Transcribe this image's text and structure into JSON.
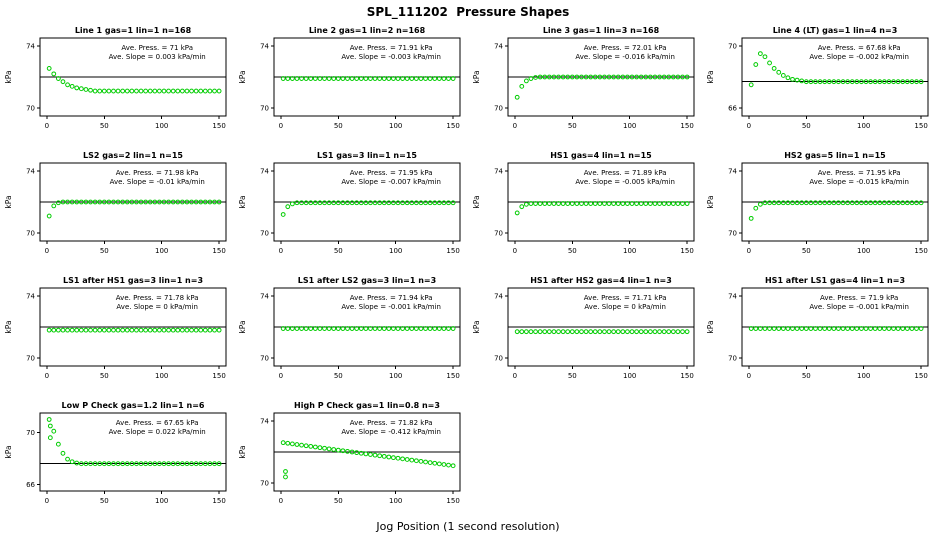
{
  "title": "SPL_111202  Pressure Shapes",
  "xlabel": "Jog Position (1 second resolution)",
  "colors": {
    "point": "#00CC00",
    "axis": "#000000"
  },
  "chart_data": {
    "type": "scatter",
    "grid": {
      "rows": 4,
      "cols": 4
    },
    "xticks": [
      0,
      50,
      100,
      150
    ],
    "xlim": [
      -6,
      156
    ],
    "plots": [
      {
        "title": "Line 1 gas=1 lin=1 n=168",
        "annotation": {
          "press": "Ave. Press. = 71 kPa",
          "slope": "Ave. Slope = 0.003 kPa/min"
        },
        "ave_press": 71,
        "ave_slope": 0.003,
        "ylabel": "kPa",
        "ylim": [
          69.5,
          74.5
        ],
        "yticks": [
          70,
          74
        ],
        "ref_line": 72,
        "series": {
          "x_start": 2,
          "x_step": 4,
          "y": [
            72.55,
            72.2,
            71.9,
            71.7,
            71.5,
            71.4,
            71.3,
            71.25,
            71.2,
            71.15,
            71.1,
            71.1,
            71.1,
            71.1,
            71.1,
            71.1,
            71.1,
            71.1,
            71.1,
            71.1,
            71.1,
            71.1,
            71.1,
            71.1,
            71.1,
            71.1,
            71.1,
            71.1,
            71.1,
            71.1,
            71.1,
            71.1,
            71.1,
            71.1,
            71.1,
            71.1,
            71.1,
            71.1
          ]
        }
      },
      {
        "title": "Line 2 gas=1 lin=2 n=168",
        "annotation": {
          "press": "Ave. Press. = 71.91 kPa",
          "slope": "Ave. Slope = -0.003 kPa/min"
        },
        "ave_press": 71.91,
        "ave_slope": -0.003,
        "ylabel": "kPa",
        "ylim": [
          69.5,
          74.5
        ],
        "yticks": [
          70,
          74
        ],
        "ref_line": 72,
        "series": {
          "x_start": 2,
          "x_step": 4,
          "y": [
            71.9,
            71.9,
            71.9,
            71.9,
            71.9,
            71.9,
            71.9,
            71.9,
            71.9,
            71.9,
            71.9,
            71.9,
            71.9,
            71.9,
            71.9,
            71.9,
            71.9,
            71.9,
            71.9,
            71.9,
            71.9,
            71.9,
            71.9,
            71.9,
            71.9,
            71.9,
            71.9,
            71.9,
            71.9,
            71.9,
            71.9,
            71.9,
            71.9,
            71.9,
            71.9,
            71.9,
            71.9,
            71.9
          ]
        }
      },
      {
        "title": "Line 3 gas=1 lin=3 n=168",
        "annotation": {
          "press": "Ave. Press. = 72.01 kPa",
          "slope": "Ave. Slope = -0.016 kPa/min"
        },
        "ave_press": 72.01,
        "ave_slope": -0.016,
        "ylabel": "kPa",
        "ylim": [
          69.5,
          74.5
        ],
        "yticks": [
          70,
          74
        ],
        "ref_line": 72,
        "series": {
          "x_start": 2,
          "x_step": 4,
          "y": [
            70.7,
            71.4,
            71.75,
            71.9,
            71.97,
            72,
            72,
            72,
            72,
            72,
            72,
            72,
            72,
            72,
            72,
            72,
            72,
            72,
            72,
            72,
            72,
            72,
            72,
            72,
            72,
            72,
            72,
            72,
            72,
            72,
            72,
            72,
            72,
            72,
            72,
            72,
            72,
            72
          ]
        }
      },
      {
        "title": "Line 4 (LT) gas=1 lin=4 n=3",
        "annotation": {
          "press": "Ave. Press. = 67.68 kPa",
          "slope": "Ave. Slope = -0.002 kPa/min"
        },
        "ave_press": 67.68,
        "ave_slope": -0.002,
        "ylabel": "kPa",
        "ylim": [
          65.5,
          70.5
        ],
        "yticks": [
          66,
          70
        ],
        "ref_line": 67.7,
        "series": {
          "x_start": 2,
          "x_step": 4,
          "y": [
            67.5,
            68.8,
            69.5,
            69.3,
            68.9,
            68.55,
            68.3,
            68.1,
            67.95,
            67.85,
            67.8,
            67.75,
            67.7,
            67.7,
            67.7,
            67.7,
            67.7,
            67.7,
            67.7,
            67.7,
            67.7,
            67.7,
            67.7,
            67.7,
            67.7,
            67.7,
            67.7,
            67.7,
            67.7,
            67.7,
            67.7,
            67.7,
            67.7,
            67.7,
            67.7,
            67.7,
            67.7,
            67.7
          ]
        }
      },
      {
        "title": "LS2 gas=2 lin=1 n=15",
        "annotation": {
          "press": "Ave. Press. = 71.98 kPa",
          "slope": "Ave. Slope = -0.01 kPa/min"
        },
        "ave_press": 71.98,
        "ave_slope": -0.01,
        "ylabel": "kPa",
        "ylim": [
          69.5,
          74.5
        ],
        "yticks": [
          70,
          74
        ],
        "ref_line": 72,
        "series": {
          "x_start": 2,
          "x_step": 4,
          "y": [
            71.1,
            71.75,
            71.95,
            72,
            72,
            72,
            72,
            72,
            72,
            72,
            72,
            72,
            72,
            72,
            72,
            72,
            72,
            72,
            72,
            72,
            72,
            72,
            72,
            72,
            72,
            72,
            72,
            72,
            72,
            72,
            72,
            72,
            72,
            72,
            72,
            72,
            72,
            72
          ]
        }
      },
      {
        "title": "LS1 gas=3 lin=1 n=15",
        "annotation": {
          "press": "Ave. Press. = 71.95 kPa",
          "slope": "Ave. Slope = -0.007 kPa/min"
        },
        "ave_press": 71.95,
        "ave_slope": -0.007,
        "ylabel": "kPa",
        "ylim": [
          69.5,
          74.5
        ],
        "yticks": [
          70,
          74
        ],
        "ref_line": 72,
        "series": {
          "x_start": 2,
          "x_step": 4,
          "y": [
            71.2,
            71.7,
            71.88,
            71.95,
            71.95,
            71.95,
            71.95,
            71.95,
            71.95,
            71.95,
            71.95,
            71.95,
            71.95,
            71.95,
            71.95,
            71.95,
            71.95,
            71.95,
            71.95,
            71.95,
            71.95,
            71.95,
            71.95,
            71.95,
            71.95,
            71.95,
            71.95,
            71.95,
            71.95,
            71.95,
            71.95,
            71.95,
            71.95,
            71.95,
            71.95,
            71.95,
            71.95,
            71.95
          ]
        }
      },
      {
        "title": "HS1 gas=4 lin=1 n=15",
        "annotation": {
          "press": "Ave. Press. = 71.89 kPa",
          "slope": "Ave. Slope = -0.005 kPa/min"
        },
        "ave_press": 71.89,
        "ave_slope": -0.005,
        "ylabel": "kPa",
        "ylim": [
          69.5,
          74.5
        ],
        "yticks": [
          70,
          74
        ],
        "ref_line": 72,
        "series": {
          "x_start": 2,
          "x_step": 4,
          "y": [
            71.3,
            71.7,
            71.85,
            71.9,
            71.9,
            71.9,
            71.9,
            71.9,
            71.9,
            71.9,
            71.9,
            71.9,
            71.9,
            71.9,
            71.9,
            71.9,
            71.9,
            71.9,
            71.9,
            71.9,
            71.9,
            71.9,
            71.9,
            71.9,
            71.9,
            71.9,
            71.9,
            71.9,
            71.9,
            71.9,
            71.9,
            71.9,
            71.9,
            71.9,
            71.9,
            71.9,
            71.9,
            71.9
          ]
        }
      },
      {
        "title": "HS2 gas=5 lin=1 n=15",
        "annotation": {
          "press": "Ave. Press. = 71.95 kPa",
          "slope": "Ave. Slope = -0.015 kPa/min"
        },
        "ave_press": 71.95,
        "ave_slope": -0.015,
        "ylabel": "kPa",
        "ylim": [
          69.5,
          74.5
        ],
        "yticks": [
          70,
          74
        ],
        "ref_line": 72,
        "series": {
          "x_start": 2,
          "x_step": 4,
          "y": [
            70.95,
            71.6,
            71.85,
            71.95,
            71.95,
            71.95,
            71.95,
            71.95,
            71.95,
            71.95,
            71.95,
            71.95,
            71.95,
            71.95,
            71.95,
            71.95,
            71.95,
            71.95,
            71.95,
            71.95,
            71.95,
            71.95,
            71.95,
            71.95,
            71.95,
            71.95,
            71.95,
            71.95,
            71.95,
            71.95,
            71.95,
            71.95,
            71.95,
            71.95,
            71.95,
            71.95,
            71.95,
            71.95
          ]
        }
      },
      {
        "title": "LS1 after HS1 gas=3 lin=1 n=3",
        "annotation": {
          "press": "Ave. Press. = 71.78 kPa",
          "slope": "Ave. Slope = 0 kPa/min"
        },
        "ave_press": 71.78,
        "ave_slope": 0,
        "ylabel": "kPa",
        "ylim": [
          69.5,
          74.5
        ],
        "yticks": [
          70,
          74
        ],
        "ref_line": 72,
        "series": {
          "x_start": 2,
          "x_step": 4,
          "y": [
            71.8,
            71.8,
            71.8,
            71.8,
            71.8,
            71.8,
            71.8,
            71.8,
            71.8,
            71.8,
            71.8,
            71.8,
            71.8,
            71.8,
            71.8,
            71.8,
            71.8,
            71.8,
            71.8,
            71.8,
            71.8,
            71.8,
            71.8,
            71.8,
            71.8,
            71.8,
            71.8,
            71.8,
            71.8,
            71.8,
            71.8,
            71.8,
            71.8,
            71.8,
            71.8,
            71.8,
            71.8,
            71.8
          ]
        }
      },
      {
        "title": "LS1 after LS2 gas=3 lin=1 n=3",
        "annotation": {
          "press": "Ave. Press. = 71.94 kPa",
          "slope": "Ave. Slope = -0.001 kPa/min"
        },
        "ave_press": 71.94,
        "ave_slope": -0.001,
        "ylabel": "kPa",
        "ylim": [
          69.5,
          74.5
        ],
        "yticks": [
          70,
          74
        ],
        "ref_line": 72,
        "series": {
          "x_start": 2,
          "x_step": 4,
          "y": [
            71.9,
            71.9,
            71.9,
            71.9,
            71.9,
            71.9,
            71.9,
            71.9,
            71.9,
            71.9,
            71.9,
            71.9,
            71.9,
            71.9,
            71.9,
            71.9,
            71.9,
            71.9,
            71.9,
            71.9,
            71.9,
            71.9,
            71.9,
            71.9,
            71.9,
            71.9,
            71.9,
            71.9,
            71.9,
            71.9,
            71.9,
            71.9,
            71.9,
            71.9,
            71.9,
            71.9,
            71.9,
            71.9
          ]
        }
      },
      {
        "title": "HS1 after HS2 gas=4 lin=1 n=3",
        "annotation": {
          "press": "Ave. Press. = 71.71 kPa",
          "slope": "Ave. Slope = 0 kPa/min"
        },
        "ave_press": 71.71,
        "ave_slope": 0,
        "ylabel": "kPa",
        "ylim": [
          69.5,
          74.5
        ],
        "yticks": [
          70,
          74
        ],
        "ref_line": 72,
        "series": {
          "x_start": 2,
          "x_step": 4,
          "y": [
            71.7,
            71.7,
            71.7,
            71.7,
            71.7,
            71.7,
            71.7,
            71.7,
            71.7,
            71.7,
            71.7,
            71.7,
            71.7,
            71.7,
            71.7,
            71.7,
            71.7,
            71.7,
            71.7,
            71.7,
            71.7,
            71.7,
            71.7,
            71.7,
            71.7,
            71.7,
            71.7,
            71.7,
            71.7,
            71.7,
            71.7,
            71.7,
            71.7,
            71.7,
            71.7,
            71.7,
            71.7,
            71.7
          ]
        }
      },
      {
        "title": "HS1 after LS1 gas=4 lin=1 n=3",
        "annotation": {
          "press": "Ave. Press. = 71.9 kPa",
          "slope": "Ave. Slope = -0.001 kPa/min"
        },
        "ave_press": 71.9,
        "ave_slope": -0.001,
        "ylabel": "kPa",
        "ylim": [
          69.5,
          74.5
        ],
        "yticks": [
          70,
          74
        ],
        "ref_line": 72,
        "series": {
          "x_start": 2,
          "x_step": 4,
          "y": [
            71.9,
            71.9,
            71.9,
            71.9,
            71.9,
            71.9,
            71.9,
            71.9,
            71.9,
            71.9,
            71.9,
            71.9,
            71.9,
            71.9,
            71.9,
            71.9,
            71.9,
            71.9,
            71.9,
            71.9,
            71.9,
            71.9,
            71.9,
            71.9,
            71.9,
            71.9,
            71.9,
            71.9,
            71.9,
            71.9,
            71.9,
            71.9,
            71.9,
            71.9,
            71.9,
            71.9,
            71.9,
            71.9
          ]
        }
      },
      {
        "title": "Low P Check gas=1.2 lin=1 n=6",
        "annotation": {
          "press": "Ave. Press. = 67.65 kPa",
          "slope": "Ave. Slope = 0.022 kPa/min"
        },
        "ave_press": 67.65,
        "ave_slope": 0.022,
        "ylabel": "kPa",
        "ylim": [
          65.5,
          71.5
        ],
        "yticks": [
          66,
          70
        ],
        "ref_line": 67.6,
        "series": {
          "x_start": 2,
          "x_step": 4,
          "y": [
            71,
            70.1,
            69.1,
            68.4,
            67.95,
            67.75,
            67.65,
            67.6,
            67.6,
            67.6,
            67.6,
            67.6,
            67.6,
            67.6,
            67.6,
            67.6,
            67.6,
            67.6,
            67.6,
            67.6,
            67.6,
            67.6,
            67.6,
            67.6,
            67.6,
            67.6,
            67.6,
            67.6,
            67.6,
            67.6,
            67.6,
            67.6,
            67.6,
            67.6,
            67.6,
            67.6,
            67.6,
            67.6
          ]
        },
        "extra_points": [
          [
            3,
            70.5
          ],
          [
            3,
            69.6
          ]
        ]
      },
      {
        "title": "High P Check gas=1 lin=0.8 n=3",
        "annotation": {
          "press": "Ave. Press. = 71.82 kPa",
          "slope": "Ave. Slope = -0.412 kPa/min"
        },
        "ave_press": 71.82,
        "ave_slope": -0.412,
        "ylabel": "kPa",
        "ylim": [
          69.5,
          74.5
        ],
        "yticks": [
          70,
          74
        ],
        "ref_line": 72,
        "series": {
          "x_start": 2,
          "x_step": 4,
          "y": [
            72.6,
            72.56,
            72.52,
            72.48,
            72.44,
            72.4,
            72.36,
            72.32,
            72.28,
            72.24,
            72.2,
            72.16,
            72.12,
            72.08,
            72.04,
            72,
            71.96,
            71.92,
            71.88,
            71.84,
            71.8,
            71.76,
            71.72,
            71.68,
            71.64,
            71.6,
            71.56,
            71.52,
            71.48,
            71.44,
            71.4,
            71.36,
            71.32,
            71.28,
            71.24,
            71.2,
            71.16,
            71.12
          ]
        },
        "extra_points": [
          [
            4,
            70.4
          ],
          [
            4,
            70.75
          ]
        ]
      }
    ]
  }
}
